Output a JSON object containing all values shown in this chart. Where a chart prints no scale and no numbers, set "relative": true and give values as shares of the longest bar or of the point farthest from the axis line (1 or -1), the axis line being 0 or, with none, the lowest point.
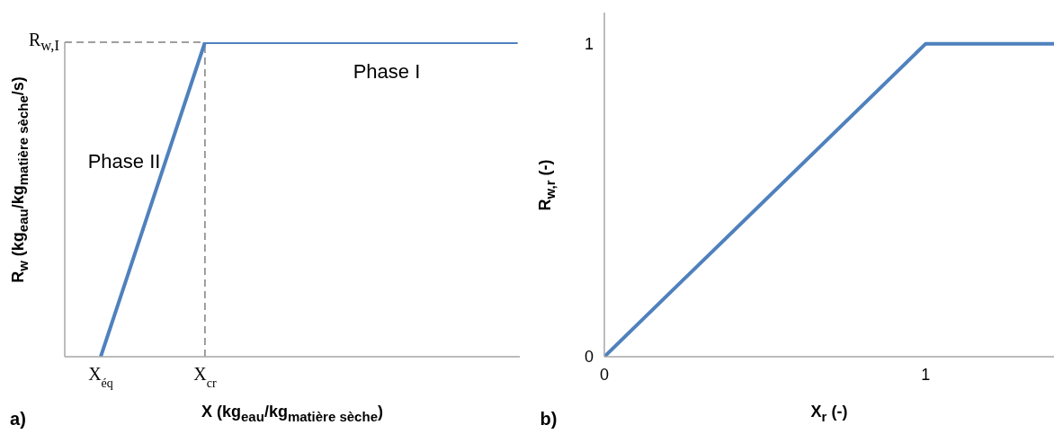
{
  "chart_data": [
    {
      "type": "line",
      "xlabel": "X (kg$_{eau}$/kg$_{matière sèche}$)",
      "ylabel": "R$_{w}$ (kg$_{eau}$/kg$_{matière sèche}$/s)",
      "categories": [
        "X$_{éq}$",
        "X$_{cr}$",
        null,
        null,
        null
      ],
      "relative": true,
      "series": [
        {
          "color": "#4f81bd",
          "values": [
            0,
            1,
            1,
            1,
            1
          ]
        }
      ],
      "ref_lines": [
        {
          "axis": "y",
          "value": 1,
          "color": "#808080",
          "line_style": "dashed"
        },
        {
          "axis": "x",
          "value": "X$_{cr}$",
          "color": "#808080",
          "line_style": "dashed"
        }
      ],
      "annotations": [
        "R$_{w,I}$",
        "Phase I",
        "Phase II",
        "a)"
      ],
      "marker": "none",
      "line_style": "solid"
    },
    {
      "type": "line",
      "xlabel": "X$_{r}$ (-)",
      "ylabel": "R$_{w,r}$ (-)",
      "x": [
        0,
        1,
        1.4
      ],
      "xlim": [
        0,
        1.4
      ],
      "xticks": [
        0,
        1
      ],
      "ylim": [
        0,
        1.1
      ],
      "yticks": [
        0,
        1
      ],
      "series": [
        {
          "color": "#4f81bd",
          "values": [
            0,
            1,
            1
          ]
        }
      ],
      "annotations": [
        "b)"
      ],
      "marker": "none",
      "line_style": "solid"
    }
  ]
}
